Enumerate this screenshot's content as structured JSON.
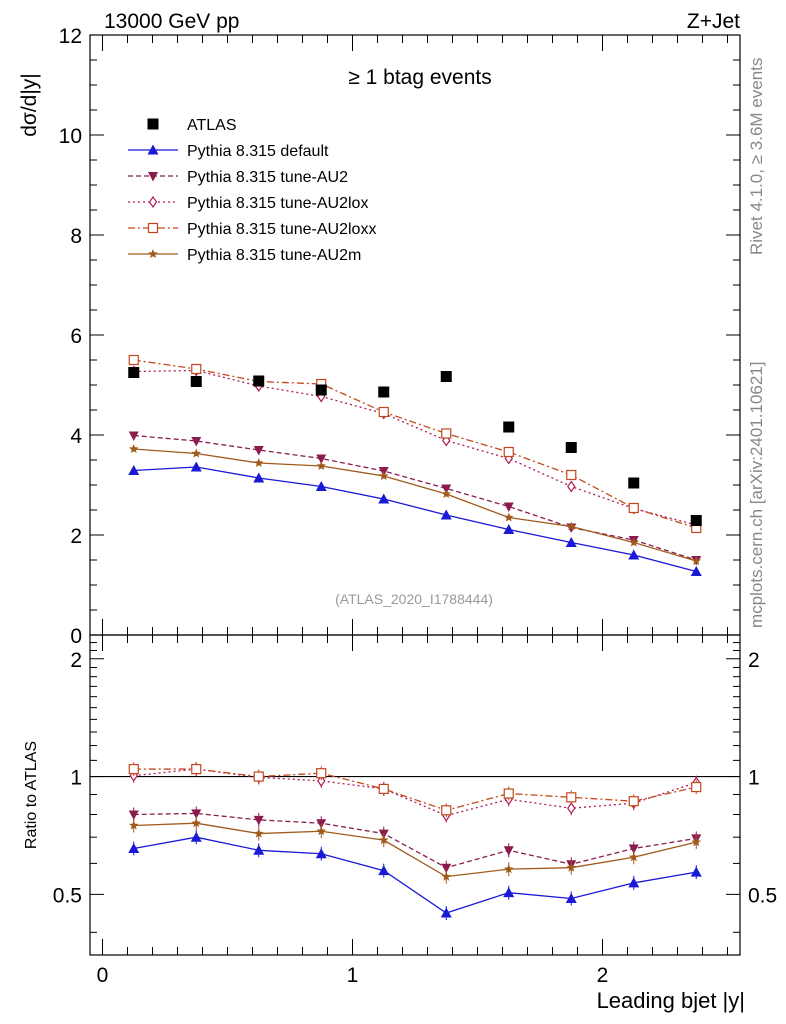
{
  "header": {
    "left": "13000 GeV pp",
    "right": "Z+Jet",
    "side_top": "Rivet 4.1.0, ≥ 3.6M events",
    "side_bottom": "mcplots.cern.ch [arXiv:2401.10621]"
  },
  "chart_data": {
    "type": "line",
    "title": "≥ 1 btag events",
    "watermark": "(ATLAS_2020_I1788444)",
    "xlabel": "Leading bjet |y|",
    "ylabel": "dσ/d|y|",
    "ratio_ylabel": "Ratio to ATLAS",
    "xlim": [
      -0.05,
      2.55
    ],
    "ylim": [
      0,
      12
    ],
    "ratio_ylim": [
      0.35,
      2.3
    ],
    "x_ticks": [
      "0",
      "1",
      "2"
    ],
    "y_ticks": [
      "0",
      "2",
      "4",
      "6",
      "8",
      "10",
      "12"
    ],
    "ratio_y_ticks": [
      "0.5",
      "1",
      "2"
    ],
    "x": [
      0.125,
      0.375,
      0.625,
      0.875,
      1.125,
      1.375,
      1.625,
      1.875,
      2.125,
      2.375
    ],
    "legend_position": "top-left",
    "data": {
      "name": "ATLAS",
      "values": [
        5.25,
        5.07,
        5.08,
        4.9,
        4.86,
        5.17,
        4.16,
        3.75,
        3.04,
        2.29
      ],
      "color": "#000000"
    },
    "series": [
      {
        "name": "Pythia 8.315 default",
        "color": "#1a1ad6",
        "dash": "",
        "marker": "triangle-up",
        "values": [
          3.29,
          3.36,
          3.14,
          2.97,
          2.72,
          2.4,
          2.11,
          1.85,
          1.6,
          1.27
        ],
        "ratio": [
          0.655,
          0.7,
          0.648,
          0.635,
          0.575,
          0.448,
          0.505,
          0.488,
          0.535,
          0.57
        ]
      },
      {
        "name": "Pythia 8.315 tune-AU2",
        "color": "#8b1c4f",
        "dash": "5,3",
        "marker": "triangle-down",
        "values": [
          3.99,
          3.88,
          3.7,
          3.53,
          3.28,
          2.93,
          2.57,
          2.15,
          1.9,
          1.5
        ],
        "ratio": [
          0.8,
          0.805,
          0.775,
          0.76,
          0.715,
          0.585,
          0.648,
          0.597,
          0.655,
          0.695
        ]
      },
      {
        "name": "Pythia 8.315 tune-AU2lox",
        "color": "#b0195a",
        "dash": "2,3",
        "marker": "diamond-open",
        "values": [
          5.27,
          5.29,
          4.98,
          4.77,
          4.43,
          3.89,
          3.53,
          2.97,
          2.53,
          2.2
        ],
        "ratio": [
          1.005,
          1.045,
          0.995,
          0.975,
          0.93,
          0.795,
          0.875,
          0.83,
          0.855,
          0.965
        ]
      },
      {
        "name": "Pythia 8.315 tune-AU2loxx",
        "color": "#c2481b",
        "dash": "7,3,2,3",
        "marker": "square-open",
        "values": [
          5.5,
          5.32,
          5.07,
          5.02,
          4.46,
          4.03,
          3.66,
          3.2,
          2.54,
          2.14
        ],
        "ratio": [
          1.045,
          1.045,
          1.0,
          1.02,
          0.93,
          0.82,
          0.905,
          0.885,
          0.865,
          0.94
        ]
      },
      {
        "name": "Pythia 8.315 tune-AU2m",
        "color": "#a05a1a",
        "dash": "",
        "marker": "star",
        "values": [
          3.72,
          3.63,
          3.44,
          3.38,
          3.18,
          2.82,
          2.35,
          2.17,
          1.85,
          1.48
        ],
        "ratio": [
          0.75,
          0.76,
          0.715,
          0.725,
          0.688,
          0.555,
          0.58,
          0.585,
          0.622,
          0.68
        ]
      }
    ]
  }
}
